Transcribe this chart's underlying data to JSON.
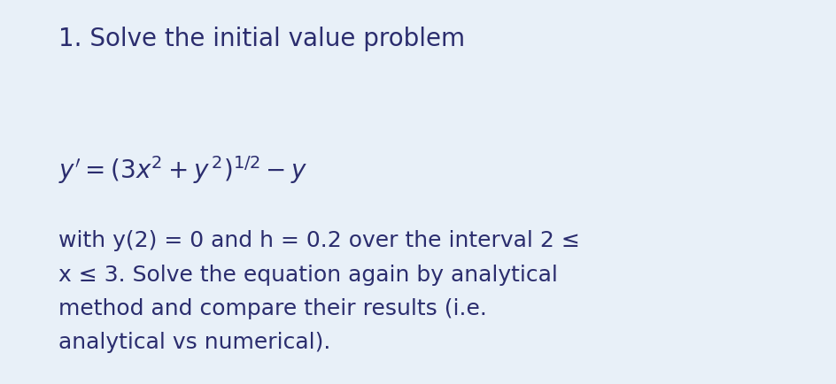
{
  "background_color": "#e8f0f8",
  "fig_width": 9.45,
  "fig_height": 4.34,
  "dpi": 100,
  "title_text": "1. Solve the initial value problem",
  "title_fontsize": 20,
  "title_fontweight": "normal",
  "equation_fontsize": 20,
  "body_text": "with y(2) = 0 and h = 0.2 over the interval 2 ≤\nx ≤ 3. Solve the equation again by analytical\nmethod and compare their results (i.e.\nanalytical vs numerical).",
  "body_fontsize": 18,
  "text_color": "#2b2d6e",
  "font_family": "DejaVu Sans",
  "linespacing": 1.75
}
